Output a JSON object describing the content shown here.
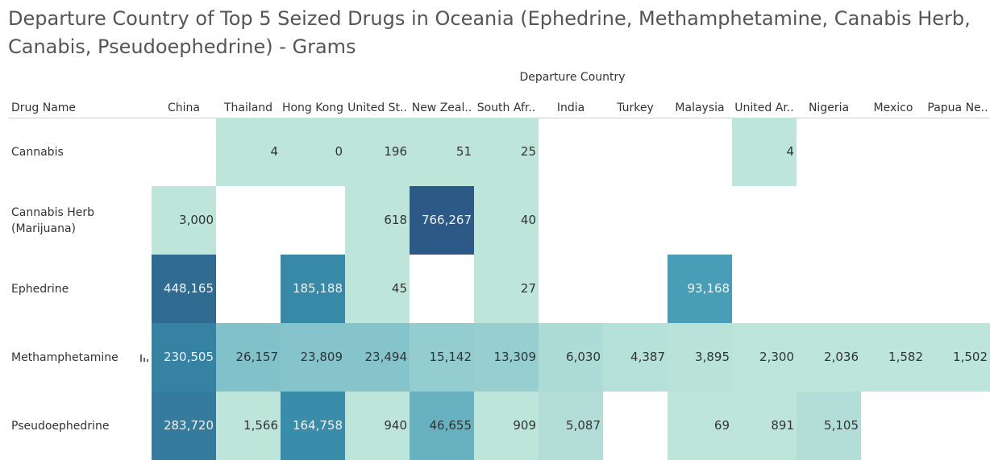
{
  "chart_data": {
    "type": "heatmap",
    "title_lines": [
      "Departure Country of Top 5 Seized Drugs in Oceania (Ephedrine, Methamphetamine, Canabis Herb,",
      "Canabis, Pseudoephedrine)  - Grams"
    ],
    "column_axis_title": "Departure Country",
    "row_header": "Drug Name",
    "columns": [
      "China",
      "Thailand",
      "Hong Kong",
      "United St..",
      "New Zeal..",
      "South Afr..",
      "India",
      "Turkey",
      "Malaysia",
      "United Ar..",
      "Nigeria",
      "Mexico",
      "Papua Ne.."
    ],
    "rows": [
      {
        "name": "Cannabis",
        "values": [
          null,
          4,
          0,
          196,
          51,
          25,
          null,
          null,
          null,
          4,
          null,
          null,
          null
        ]
      },
      {
        "name": "Cannabis Herb (Marijuana)",
        "name_lines": [
          "Cannabis Herb",
          "(Marijuana)"
        ],
        "values": [
          3000,
          null,
          null,
          618,
          766267,
          40,
          null,
          null,
          null,
          null,
          null,
          null,
          null
        ]
      },
      {
        "name": "Ephedrine",
        "values": [
          448165,
          null,
          185188,
          45,
          null,
          27,
          null,
          null,
          93168,
          null,
          null,
          null,
          null
        ]
      },
      {
        "name": "Methamphetamine",
        "values": [
          230505,
          26157,
          23809,
          23494,
          15142,
          13309,
          6030,
          4387,
          3895,
          2300,
          2036,
          1582,
          1502
        ]
      },
      {
        "name": "Pseudoephedrine",
        "values": [
          283720,
          1566,
          164758,
          940,
          46655,
          909,
          5087,
          null,
          69,
          891,
          5105,
          null,
          null
        ]
      }
    ],
    "color_scale": {
      "low": "#bde5da",
      "high": "#2c5985"
    },
    "marker_icon": "bar-chart-icon"
  }
}
